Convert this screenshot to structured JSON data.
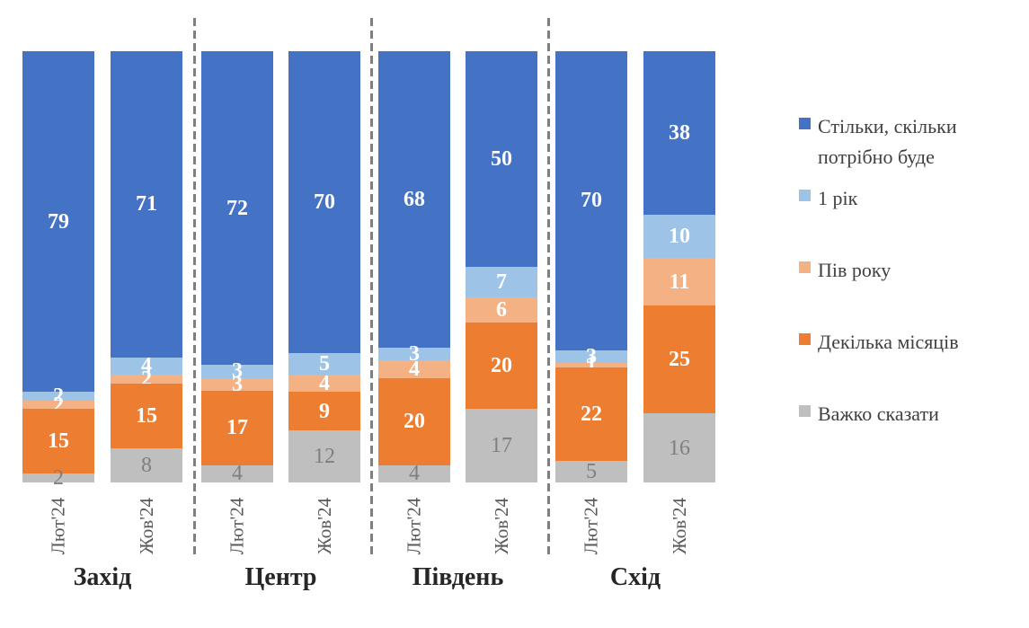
{
  "chart_data": {
    "type": "bar",
    "stacked": true,
    "value_unit": "percent",
    "title": "",
    "grid": false,
    "legend_position": "right",
    "group_labels": [
      "Захід",
      "Центр",
      "Південь",
      "Схід"
    ],
    "bar_labels": [
      "Лют'24",
      "Жов'24",
      "Лют'24",
      "Жов'24",
      "Лют'24",
      "Жов'24",
      "Лют'24",
      "Жов'24"
    ],
    "series": [
      {
        "name": "Стільки, скільки потрібно буде",
        "color": "#4472C4",
        "label_color": "#FFFFFF",
        "values": [
          79,
          71,
          72,
          70,
          68,
          50,
          70,
          38
        ]
      },
      {
        "name": "1 рік",
        "color": "#9DC3E6",
        "label_color": "#FFFFFF",
        "values": [
          2,
          4,
          3,
          5,
          3,
          7,
          3,
          10
        ]
      },
      {
        "name": "Пів року",
        "color": "#F4B183",
        "label_color": "#FFFFFF",
        "values": [
          2,
          2,
          3,
          4,
          4,
          6,
          1,
          11
        ]
      },
      {
        "name": "Декілька місяців",
        "color": "#ED7D31",
        "label_color": "#FFFFFF",
        "values": [
          15,
          15,
          17,
          9,
          20,
          20,
          22,
          25
        ]
      },
      {
        "name": "Важко сказати",
        "color": "#BFBFBF",
        "label_color": "#7F7F7F",
        "values": [
          2,
          8,
          4,
          12,
          4,
          17,
          5,
          16
        ]
      }
    ],
    "legend_items": [
      "Стільки, скільки\nпотрібно буде",
      "1 рік",
      "Пів року",
      "Декілька місяців",
      "Важко сказати"
    ],
    "divider_color": "#7F7F7F",
    "wave_label_color": "#595959",
    "region_label_color": "#262626",
    "legend_text_color": "#404040"
  }
}
